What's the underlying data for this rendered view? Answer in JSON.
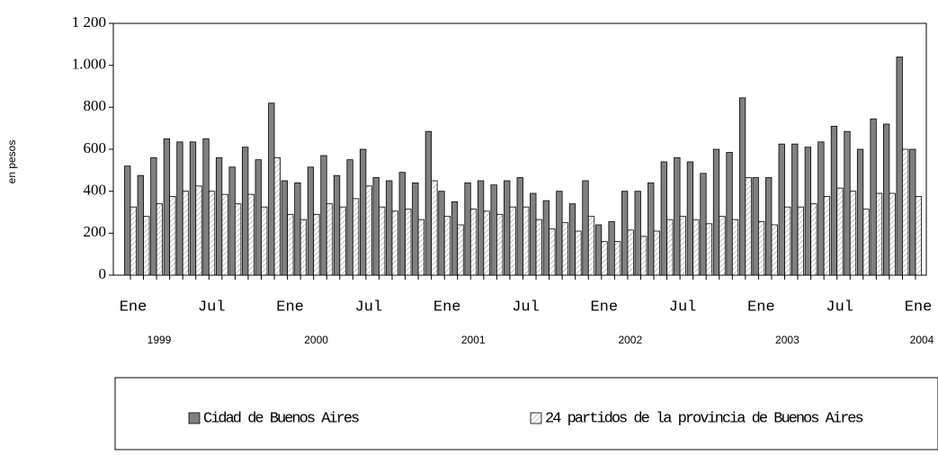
{
  "chart_data": {
    "type": "bar",
    "y_label": "en pesos",
    "categories": [
      "Ene",
      null,
      null,
      null,
      null,
      null,
      "Jul",
      null,
      null,
      null,
      null,
      null,
      "Ene",
      null,
      null,
      null,
      null,
      null,
      "Jul",
      null,
      null,
      null,
      null,
      null,
      "Ene",
      null,
      null,
      null,
      null,
      null,
      "Jul",
      null,
      null,
      null,
      null,
      null,
      "Ene",
      null,
      null,
      null,
      null,
      null,
      "Jul",
      null,
      null,
      null,
      null,
      null,
      "Ene",
      null,
      null,
      null,
      null,
      null,
      "Jul",
      null,
      null,
      null,
      null,
      null,
      "Ene"
    ],
    "category_years": [
      "1999",
      null,
      null,
      null,
      null,
      null,
      null,
      null,
      null,
      null,
      null,
      null,
      "2000",
      null,
      null,
      null,
      null,
      null,
      null,
      null,
      null,
      null,
      null,
      null,
      "2001",
      null,
      null,
      null,
      null,
      null,
      null,
      null,
      null,
      null,
      null,
      null,
      "2002",
      null,
      null,
      null,
      null,
      null,
      null,
      null,
      null,
      null,
      null,
      null,
      "2003",
      null,
      null,
      null,
      null,
      null,
      null,
      null,
      null,
      null,
      null,
      null,
      "2004"
    ],
    "series": [
      {
        "name": "Cidad de Buenos Aires",
        "color": "#808080",
        "values": [
          520,
          475,
          560,
          650,
          635,
          635,
          650,
          560,
          515,
          610,
          550,
          820,
          450,
          440,
          515,
          570,
          475,
          550,
          600,
          465,
          450,
          490,
          440,
          685,
          400,
          350,
          440,
          450,
          430,
          450,
          465,
          390,
          355,
          400,
          340,
          450,
          240,
          255,
          400,
          400,
          440,
          540,
          560,
          540,
          485,
          600,
          585,
          845,
          465,
          465,
          625,
          625,
          610,
          635,
          710,
          685,
          600,
          745,
          720,
          1040,
          600
        ]
      },
      {
        "name": "24 partidos de la provincia de Buenos Aires",
        "color": "#ffffff",
        "values": [
          325,
          280,
          340,
          375,
          400,
          425,
          400,
          385,
          340,
          385,
          325,
          560,
          290,
          265,
          290,
          340,
          325,
          365,
          425,
          325,
          305,
          315,
          265,
          450,
          280,
          240,
          315,
          305,
          290,
          325,
          325,
          265,
          220,
          250,
          210,
          280,
          160,
          160,
          215,
          185,
          210,
          265,
          280,
          265,
          245,
          280,
          265,
          465,
          255,
          240,
          325,
          325,
          340,
          375,
          415,
          400,
          315,
          390,
          390,
          600,
          375
        ]
      }
    ],
    "ylim": [
      0,
      1200
    ],
    "yticks": [
      0,
      200,
      400,
      600,
      800,
      {
        "value": 1000,
        "label": "1.000"
      },
      {
        "value": 1200,
        "label": "1 200"
      }
    ]
  }
}
